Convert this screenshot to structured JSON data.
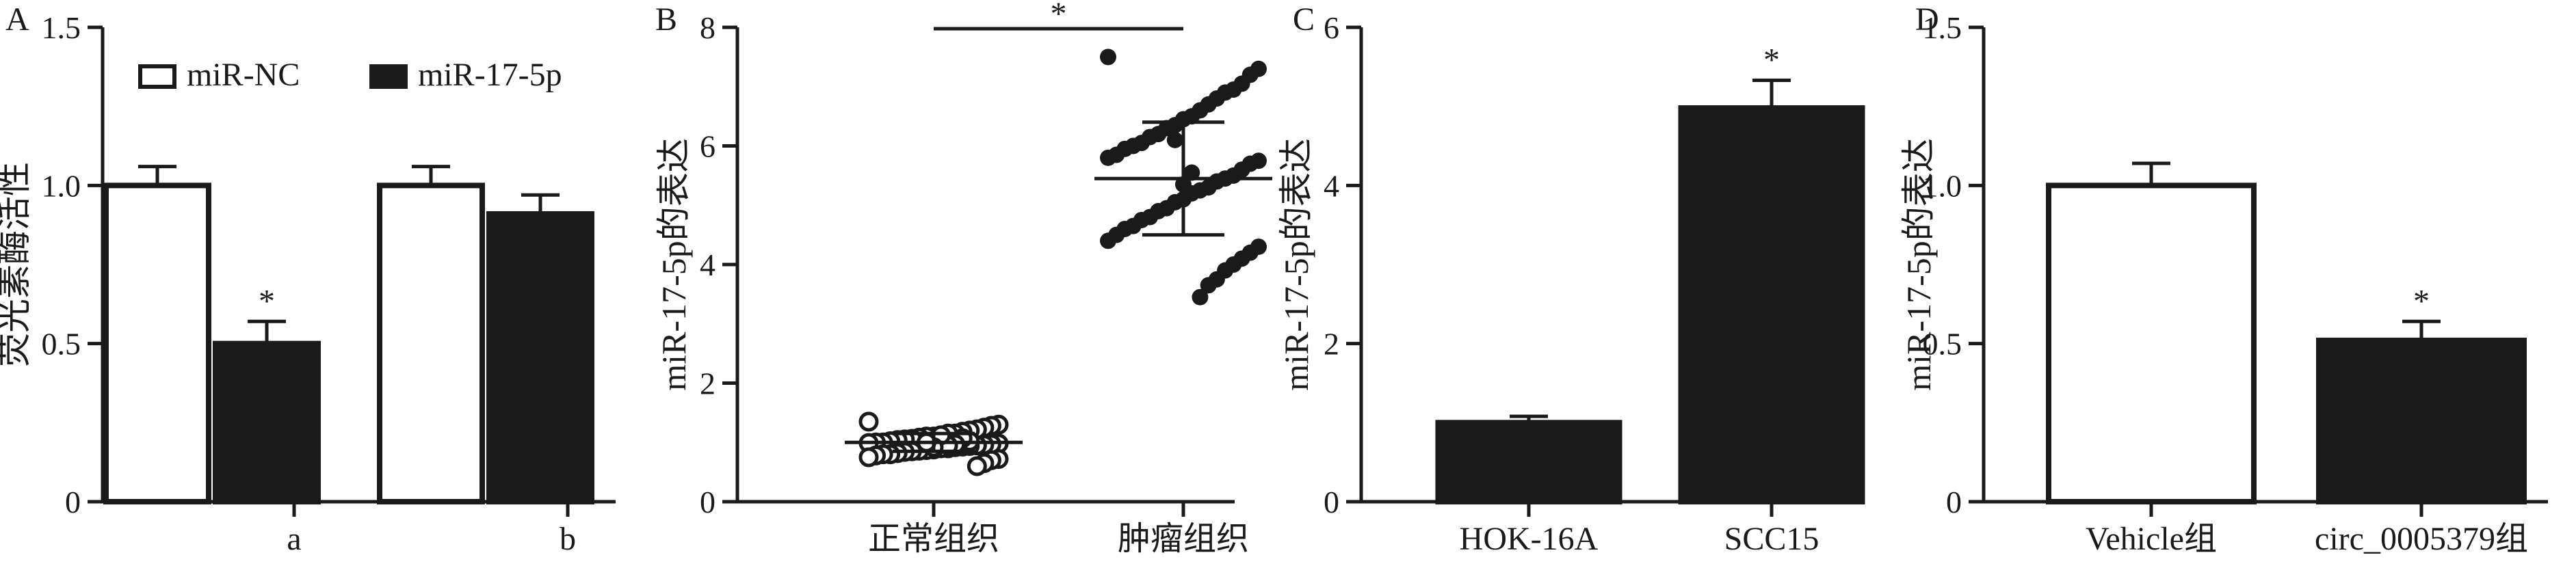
{
  "chart_data": [
    {
      "panel": "A",
      "type": "bar",
      "ylabel": "荧光素酶活性",
      "ylim": [
        0,
        1.5
      ],
      "yticks": [
        "0",
        "0.5",
        "1.0",
        "1.5"
      ],
      "categories": [
        "a",
        "b"
      ],
      "series": [
        {
          "name": "miR-NC",
          "fill": "#ffffff",
          "values": [
            1.0,
            1.0
          ],
          "errors": [
            0.06,
            0.06
          ]
        },
        {
          "name": "miR-17-5p",
          "fill": "#1a1a1a",
          "values": [
            0.5,
            0.91
          ],
          "errors": [
            0.07,
            0.06
          ]
        }
      ],
      "significance": [
        {
          "series": 1,
          "category": 0,
          "label": "*"
        }
      ],
      "legend": "top"
    },
    {
      "panel": "B",
      "type": "scatter",
      "ylabel": "miR-17-5p的表达",
      "ylim": [
        0,
        8
      ],
      "yticks": [
        "0",
        "2",
        "4",
        "6",
        "8"
      ],
      "categories": [
        "正常组织",
        "肿瘤组织"
      ],
      "groups": [
        {
          "marker": "open-circle",
          "mean": 1.0,
          "sd": 0.15,
          "points": [
            1.35,
            1.3,
            1.28,
            1.25,
            1.22,
            1.2,
            1.18,
            1.15,
            1.15,
            1.12,
            1.1,
            1.1,
            1.08,
            1.06,
            1.05,
            1.04,
            1.02,
            1.0,
            1.0,
            0.99,
            0.98,
            0.97,
            0.96,
            0.95,
            0.94,
            0.93,
            0.92,
            0.9,
            0.9,
            0.88,
            0.87,
            0.86,
            0.85,
            0.84,
            0.82,
            0.8,
            0.8,
            0.78,
            0.75,
            0.72,
            0.7,
            0.65,
            0.6,
            1.02,
            1.07,
            0.97,
            0.95,
            1.12,
            0.92,
            1.0
          ]
        },
        {
          "marker": "filled-circle",
          "mean": 5.45,
          "sd": 0.95,
          "points": [
            7.5,
            7.3,
            7.2,
            7.05,
            6.95,
            6.9,
            6.8,
            6.7,
            6.6,
            6.5,
            6.45,
            6.35,
            6.3,
            6.2,
            6.15,
            6.05,
            6.0,
            5.95,
            5.85,
            5.8,
            5.75,
            5.7,
            5.6,
            5.5,
            5.45,
            5.4,
            5.3,
            5.25,
            5.2,
            5.1,
            5.05,
            4.95,
            4.9,
            4.8,
            4.75,
            4.65,
            4.6,
            4.5,
            4.4,
            4.3,
            4.2,
            4.1,
            4.0,
            3.9,
            3.75,
            3.65,
            3.45,
            5.55,
            5.35,
            6.1
          ]
        }
      ],
      "significance": [
        {
          "between": [
            0,
            1
          ],
          "label": "*"
        }
      ]
    },
    {
      "panel": "C",
      "type": "bar",
      "ylabel": "miR-17-5p的表达",
      "ylim": [
        0,
        6
      ],
      "yticks": [
        "0",
        "2",
        "4",
        "6"
      ],
      "categories": [
        "HOK-16A",
        "SCC15"
      ],
      "series": [
        {
          "fill": "#1a1a1a",
          "values": [
            1.0,
            4.98
          ],
          "errors": [
            0.08,
            0.35
          ]
        }
      ],
      "significance": [
        {
          "series": 0,
          "category": 1,
          "label": "*"
        }
      ]
    },
    {
      "panel": "D",
      "type": "bar",
      "ylabel": "miR-17-5p的表达",
      "ylim": [
        0,
        1.5
      ],
      "yticks": [
        "0",
        "0.5",
        "1.0",
        "1.5"
      ],
      "categories": [
        "Vehicle组",
        "circ_0005379组"
      ],
      "series": [
        {
          "fills": [
            "#ffffff",
            "#1a1a1a"
          ],
          "values": [
            1.0,
            0.51
          ],
          "errors": [
            0.07,
            0.06
          ]
        }
      ],
      "significance": [
        {
          "series": 0,
          "category": 1,
          "label": "*"
        }
      ]
    }
  ]
}
